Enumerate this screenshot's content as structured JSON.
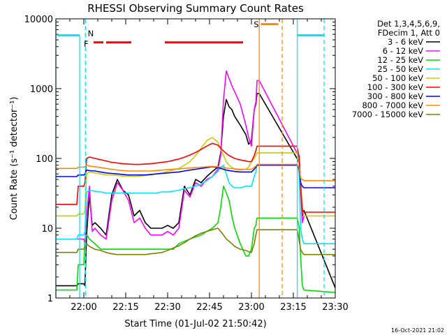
{
  "chart_data": {
    "type": "line",
    "title": "RHESSI Observing Summary Count Rates",
    "xlabel": "Start Time (01-Jul-02 21:50:42)",
    "ylabel": "Count Rate (s⁻¹ detector⁻¹)",
    "xlim": [
      0,
      100
    ],
    "ylim": [
      1,
      10000
    ],
    "yscale": "log",
    "x_ticks": [
      {
        "v": 10,
        "label": "22:00"
      },
      {
        "v": 25,
        "label": "22:15"
      },
      {
        "v": 40,
        "label": "22:30"
      },
      {
        "v": 55,
        "label": "22:45"
      },
      {
        "v": 70,
        "label": "23:00"
      },
      {
        "v": 85,
        "label": "23:15"
      },
      {
        "v": 100,
        "label": "23:30"
      }
    ],
    "y_ticks": [
      {
        "v": 1,
        "label": "1"
      },
      {
        "v": 10,
        "label": "10"
      },
      {
        "v": 100,
        "label": "100"
      },
      {
        "v": 1000,
        "label": "1000"
      },
      {
        "v": 10000,
        "label": "10000"
      }
    ],
    "legend_header": [
      "Det 1,3,4,5,6,9,",
      "FDecim 1, Att 0"
    ],
    "legend_position": "right",
    "series": [
      {
        "name": "3 - 6 keV",
        "color": "#000000",
        "x": [
          0,
          7.5,
          8,
          10,
          10.4,
          11,
          12,
          13,
          14,
          16,
          18,
          20,
          22,
          24,
          26,
          28,
          30,
          32,
          34,
          36,
          38,
          40,
          42,
          44,
          46,
          48,
          50,
          52,
          54,
          56,
          58,
          59,
          60,
          61,
          62,
          63,
          64,
          66,
          68,
          69,
          70,
          71,
          71.6,
          72,
          72.8,
          86.3,
          86.8,
          87.1,
          87.6,
          88.2,
          88.8,
          100
        ],
        "y": [
          1.5,
          1.5,
          1.6,
          1.6,
          1.5,
          8,
          30,
          11,
          12,
          10,
          8,
          30,
          50,
          35,
          30,
          15,
          18,
          12,
          10,
          10,
          10,
          11,
          10,
          12,
          40,
          30,
          50,
          45,
          55,
          65,
          75,
          120,
          400,
          700,
          550,
          500,
          400,
          300,
          220,
          160,
          180,
          500,
          600,
          850,
          850,
          100,
          90,
          100,
          40,
          15,
          18,
          1.4
        ]
      },
      {
        "name": "6 - 12 keV",
        "color": "#ff00ff",
        "x": [
          7.5,
          8,
          10,
          10.4,
          11,
          12,
          13,
          14,
          16,
          18,
          20,
          22,
          24,
          26,
          28,
          30,
          32,
          34,
          36,
          38,
          40,
          42,
          44,
          46,
          48,
          50,
          52,
          54,
          56,
          58,
          59,
          60,
          61,
          62,
          63,
          64,
          66,
          68,
          69,
          70,
          71,
          71.6,
          72,
          72.8,
          86.3,
          86.8,
          87.1,
          87.6,
          88.2,
          88.8
        ],
        "y": [
          7,
          7,
          7,
          6,
          15,
          40,
          9,
          10,
          8,
          7,
          25,
          45,
          35,
          25,
          12,
          14,
          10,
          8,
          8,
          8,
          9,
          8,
          10,
          35,
          28,
          45,
          40,
          50,
          55,
          70,
          110,
          700,
          1800,
          1400,
          1100,
          900,
          600,
          300,
          200,
          150,
          500,
          650,
          1300,
          1300,
          120,
          100,
          110,
          40,
          12,
          15
        ]
      },
      {
        "name": "12 - 25 keV",
        "color": "#00dd00",
        "x": [
          0,
          7.5,
          8,
          10,
          10.4,
          11,
          12,
          14,
          16,
          18,
          20,
          22,
          24,
          26,
          28,
          30,
          32,
          34,
          36,
          38,
          40,
          42,
          44,
          46,
          48,
          50,
          52,
          54,
          56,
          58,
          59,
          60,
          61,
          62,
          63,
          64,
          66,
          68,
          69,
          70,
          71,
          71.6,
          72,
          72.8,
          86.3,
          86.8,
          87.1,
          87.6,
          88.2,
          88.8,
          100
        ],
        "y": [
          1.3,
          1.3,
          3,
          3,
          7,
          8,
          7,
          6,
          5,
          5,
          5,
          5,
          5,
          5,
          5,
          5,
          5,
          5,
          5,
          5,
          5,
          5,
          6,
          6.5,
          7,
          7.5,
          8,
          9,
          10,
          12,
          20,
          40,
          32,
          25,
          15,
          10,
          6,
          4,
          4,
          5,
          10,
          11,
          14,
          14,
          14,
          12,
          10,
          4,
          1.5,
          1.3,
          1.2
        ]
      },
      {
        "name": "25 - 50 keV",
        "color": "#00e5ff",
        "x": [
          0,
          7.5,
          8,
          10,
          10.4,
          11,
          12,
          14,
          16,
          18,
          20,
          22,
          24,
          26,
          28,
          30,
          32,
          34,
          36,
          38,
          40,
          42,
          44,
          46,
          48,
          50,
          52,
          54,
          56,
          58,
          59,
          60,
          61,
          62,
          63,
          64,
          66,
          68,
          69,
          70,
          71,
          71.6,
          72,
          72.8,
          86.3,
          86.8,
          87.1,
          87.6,
          88.2,
          88.8,
          100
        ],
        "y": [
          7,
          7,
          8,
          8,
          9,
          33,
          35,
          34,
          33,
          32,
          32,
          32,
          32,
          32,
          32,
          32,
          32,
          32,
          32,
          33,
          33,
          34,
          35,
          37,
          38,
          40,
          43,
          48,
          55,
          65,
          75,
          80,
          60,
          45,
          40,
          38,
          38,
          40,
          40,
          40,
          55,
          65,
          80,
          80,
          80,
          70,
          60,
          10,
          7,
          6,
          6
        ]
      },
      {
        "name": "50 - 100 keV",
        "color": "#cccc00",
        "x": [
          0,
          7.5,
          8,
          10,
          10.4,
          11,
          12,
          14,
          16,
          18,
          20,
          22,
          24,
          26,
          28,
          30,
          32,
          34,
          36,
          38,
          40,
          42,
          44,
          46,
          48,
          50,
          52,
          54,
          56,
          58,
          59,
          60,
          61,
          62,
          63,
          64,
          66,
          68,
          69,
          70,
          71,
          71.6,
          72,
          72.8,
          86.3,
          86.8,
          87.1,
          87.6,
          88.2,
          88.8,
          100
        ],
        "y": [
          15,
          15,
          16,
          16,
          18,
          60,
          64,
          62,
          60,
          58,
          58,
          57,
          56,
          56,
          55,
          56,
          57,
          58,
          60,
          62,
          65,
          68,
          72,
          80,
          90,
          110,
          140,
          180,
          200,
          170,
          140,
          110,
          90,
          80,
          75,
          70,
          68,
          70,
          75,
          90,
          100,
          110,
          120,
          120,
          120,
          100,
          80,
          50,
          20,
          15,
          15
        ]
      },
      {
        "name": "100 - 300 keV",
        "color": "#ff0000",
        "x": [
          0,
          7.5,
          8,
          10,
          10.4,
          11,
          12,
          14,
          16,
          18,
          20,
          22,
          24,
          26,
          28,
          30,
          32,
          34,
          36,
          38,
          40,
          42,
          44,
          46,
          48,
          50,
          52,
          54,
          56,
          58,
          59,
          60,
          61,
          62,
          63,
          64,
          66,
          68,
          69,
          70,
          71,
          71.6,
          72,
          72.8,
          86.3,
          86.8,
          87.1,
          87.6,
          88.2,
          88.8,
          100
        ],
        "y": [
          22,
          22,
          40,
          40,
          45,
          100,
          105,
          100,
          96,
          92,
          88,
          86,
          84,
          83,
          82,
          82,
          83,
          84,
          86,
          88,
          90,
          94,
          98,
          104,
          112,
          122,
          135,
          150,
          165,
          155,
          140,
          128,
          118,
          110,
          105,
          100,
          95,
          92,
          90,
          90,
          110,
          130,
          150,
          150,
          150,
          120,
          100,
          40,
          18,
          17,
          17
        ]
      },
      {
        "name": "300 - 800 keV",
        "color": "#0000ff",
        "x": [
          0,
          7.5,
          8,
          10,
          10.4,
          11,
          12,
          14,
          16,
          18,
          20,
          22,
          24,
          26,
          28,
          30,
          32,
          34,
          36,
          38,
          40,
          42,
          44,
          46,
          48,
          50,
          52,
          54,
          56,
          58,
          59,
          60,
          61,
          62,
          63,
          64,
          66,
          68,
          69,
          70,
          71,
          71.6,
          72,
          72.8,
          86.3,
          86.8,
          87.1,
          87.6,
          88.2,
          88.8,
          100
        ],
        "y": [
          55,
          55,
          58,
          58,
          60,
          68,
          67,
          66,
          64,
          62,
          61,
          60,
          59,
          58,
          58,
          58,
          58,
          59,
          60,
          61,
          62,
          63,
          64,
          66,
          68,
          70,
          72,
          74,
          76,
          74,
          72,
          70,
          68,
          67,
          66,
          65,
          64,
          64,
          64,
          64,
          70,
          75,
          80,
          80,
          80,
          75,
          70,
          45,
          40,
          38,
          38
        ]
      },
      {
        "name": "800 - 7000 keV",
        "color": "#ff8800",
        "x": [
          0,
          7.5,
          8,
          10,
          10.4,
          11,
          12,
          14,
          16,
          18,
          20,
          22,
          24,
          26,
          28,
          30,
          32,
          34,
          36,
          38,
          40,
          42,
          44,
          46,
          48,
          50,
          52,
          54,
          56,
          58,
          59,
          60,
          61,
          62,
          63,
          64,
          66,
          68,
          69,
          70,
          71,
          71.6,
          72,
          72.8,
          86.3,
          86.8,
          87.1,
          87.6,
          88.2,
          88.8,
          100
        ],
        "y": [
          72,
          72,
          75,
          75,
          76,
          80,
          78,
          76,
          74,
          72,
          70,
          68,
          67,
          66,
          66,
          66,
          66,
          66,
          67,
          68,
          69,
          70,
          71,
          72,
          73,
          74,
          75,
          76,
          77,
          76,
          75,
          74,
          73,
          72,
          72,
          71,
          70,
          70,
          70,
          70,
          74,
          78,
          82,
          82,
          82,
          78,
          74,
          52,
          50,
          48,
          48
        ]
      },
      {
        "name": "7000 - 15000 keV",
        "color": "#808000",
        "x": [
          0,
          7.5,
          8,
          10,
          10.4,
          11,
          12,
          14,
          16,
          18,
          20,
          22,
          24,
          26,
          28,
          30,
          32,
          34,
          36,
          38,
          40,
          42,
          44,
          46,
          48,
          50,
          52,
          54,
          56,
          58,
          59,
          60,
          61,
          62,
          63,
          64,
          66,
          68,
          69,
          70,
          71,
          71.6,
          72,
          72.8,
          86.3,
          86.8,
          87.1,
          87.6,
          88.2,
          88.8,
          100
        ],
        "y": [
          4.5,
          4.5,
          5,
          5,
          5.5,
          6,
          5.5,
          5,
          4.8,
          4.5,
          4.3,
          4.2,
          4.2,
          4.2,
          4.2,
          4.2,
          4.2,
          4.3,
          4.4,
          4.5,
          4.8,
          5.2,
          5.6,
          6.2,
          7,
          7.8,
          8.5,
          9,
          9.5,
          10,
          9,
          8,
          7,
          6.5,
          6,
          5.5,
          5,
          4.8,
          4.6,
          4.5,
          6,
          8,
          9.5,
          9.5,
          9.5,
          8,
          6.5,
          5,
          4.5,
          4.2,
          4.2
        ]
      }
    ],
    "segments": [
      {
        "color": "#00e5ff",
        "dashed": false,
        "x": [
          0,
          0
        ],
        "y": [
          1,
          10000
        ]
      },
      {
        "color": "#00e5ff",
        "dashed": false,
        "x": [
          0.5,
          8.5
        ],
        "y": [
          5800,
          5800
        ]
      },
      {
        "color": "#00e5ff",
        "dashed": false,
        "x": [
          8.5,
          8.5
        ],
        "y": [
          5800,
          1
        ]
      },
      {
        "color": "#00e5ff",
        "dashed": true,
        "x": [
          10.6,
          10.6
        ],
        "y": [
          10000,
          1
        ]
      },
      {
        "color": "#00e5ff",
        "dashed": false,
        "x": [
          86.4,
          86.4
        ],
        "y": [
          10000,
          1
        ]
      },
      {
        "color": "#00e5ff",
        "dashed": false,
        "x": [
          86.5,
          96
        ],
        "y": [
          5800,
          5800
        ]
      },
      {
        "color": "#00e5ff",
        "dashed": true,
        "x": [
          96,
          96
        ],
        "y": [
          10000,
          1
        ]
      },
      {
        "color": "#ff8800",
        "dashed": false,
        "x": [
          72.8,
          72.8
        ],
        "y": [
          10000,
          1
        ]
      },
      {
        "color": "#ff8800",
        "dashed": false,
        "x": [
          73.4,
          79.6
        ],
        "y": [
          8400,
          8400
        ]
      },
      {
        "color": "#ff8800",
        "dashed": true,
        "x": [
          81,
          81
        ],
        "y": [
          10000,
          1
        ]
      },
      {
        "color": "#ff0000",
        "dashed": false,
        "x": [
          13.5,
          17
        ],
        "y": [
          4600,
          4600
        ]
      },
      {
        "color": "#ff0000",
        "dashed": false,
        "x": [
          18,
          27
        ],
        "y": [
          4600,
          4600
        ]
      },
      {
        "color": "#ff0000",
        "dashed": false,
        "x": [
          39,
          67
        ],
        "y": [
          4600,
          4600
        ]
      }
    ],
    "annotations": [
      {
        "text": "N",
        "color": "#00e5ff",
        "x": 11.4,
        "y": 5600
      },
      {
        "text": "F",
        "color": "#ff0000",
        "x": 10,
        "y": 4000
      },
      {
        "text": "S",
        "color": "#ff8800",
        "x": 70.8,
        "y": 7600
      }
    ]
  },
  "footer_timestamp": "16-Oct-2021 21:02"
}
